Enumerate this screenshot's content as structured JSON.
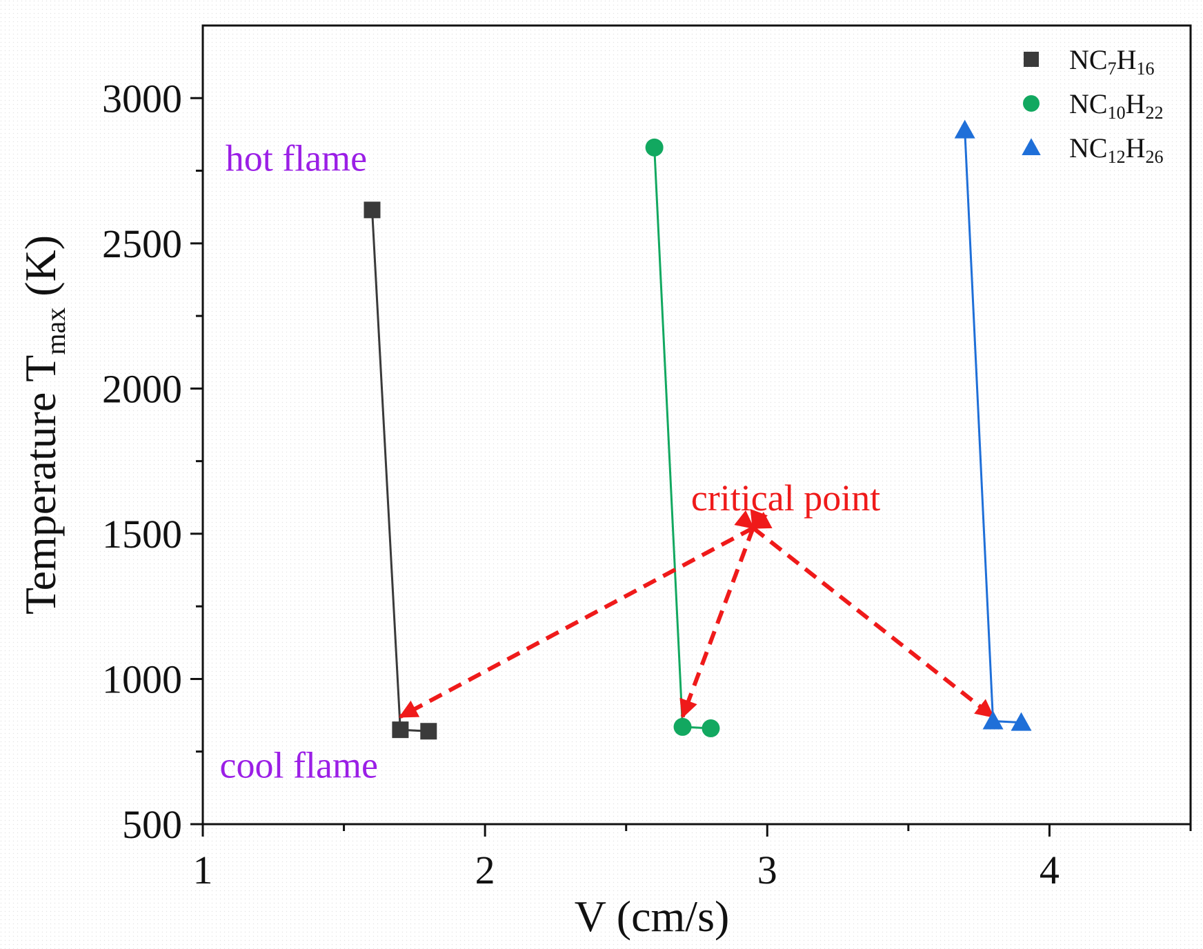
{
  "chart_data": {
    "type": "line",
    "title": "",
    "xlabel": "V (cm/s)",
    "ylabel_main": "Temperature T",
    "ylabel_sub": "max",
    "ylabel_unit": " (K)",
    "xlim": [
      1,
      4.5
    ],
    "ylim": [
      500,
      3250
    ],
    "xticks": [
      1,
      2,
      3,
      4
    ],
    "xticks_minor": [
      1.5,
      2.5,
      3.5,
      4.5
    ],
    "yticks": [
      500,
      1000,
      1500,
      2000,
      2500,
      3000
    ],
    "yticks_minor": [
      750,
      1250,
      1750,
      2250,
      2750
    ],
    "grid": false,
    "legend_position": "top-right",
    "series": [
      {
        "name": "NC7H16",
        "legend_parts": [
          {
            "t": "NC"
          },
          {
            "t": "7",
            "sub": true
          },
          {
            "t": "H"
          },
          {
            "t": "16",
            "sub": true
          }
        ],
        "marker": "square",
        "color": "#3a3a3a",
        "x": [
          1.6,
          1.7,
          1.8
        ],
        "y": [
          2615,
          825,
          820
        ]
      },
      {
        "name": "NC10H22",
        "legend_parts": [
          {
            "t": "NC"
          },
          {
            "t": "10",
            "sub": true
          },
          {
            "t": "H"
          },
          {
            "t": "22",
            "sub": true
          }
        ],
        "marker": "circle",
        "color": "#12a860",
        "x": [
          2.6,
          2.7,
          2.8
        ],
        "y": [
          2830,
          835,
          830
        ]
      },
      {
        "name": "NC12H26",
        "legend_parts": [
          {
            "t": "NC"
          },
          {
            "t": "12",
            "sub": true
          },
          {
            "t": "H"
          },
          {
            "t": "26",
            "sub": true
          }
        ],
        "marker": "triangle",
        "color": "#1f6fd8",
        "x": [
          3.7,
          3.8,
          3.9
        ],
        "y": [
          2890,
          855,
          850
        ]
      }
    ],
    "annotations": [
      {
        "text": "hot flame",
        "x": 1.08,
        "y": 2750,
        "color": "#9b1fe6"
      },
      {
        "text": "cool flame",
        "x": 1.06,
        "y": 660,
        "color": "#9b1fe6"
      },
      {
        "text": "critical point",
        "x": 2.73,
        "y": 1580,
        "color": "#ef1a1a"
      }
    ],
    "arrows": {
      "color": "#ef1a1a",
      "origin": {
        "x": 2.95,
        "y": 1520
      },
      "targets": [
        {
          "x": 1.7,
          "y": 870
        },
        {
          "x": 2.7,
          "y": 870
        },
        {
          "x": 3.8,
          "y": 870
        }
      ]
    }
  }
}
